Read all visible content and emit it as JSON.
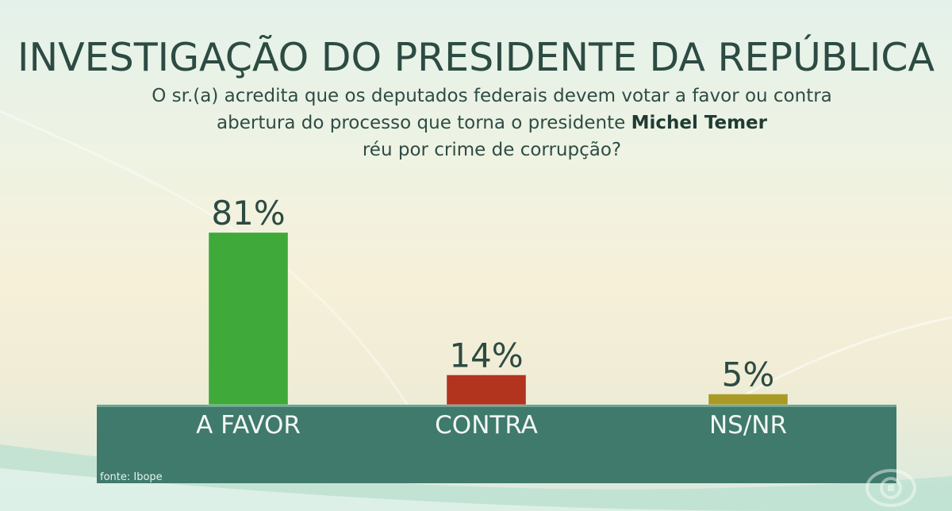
{
  "chart_data": {
    "type": "bar",
    "title": "INVESTIGAÇÃO DO PRESIDENTE DA REPÚBLICA",
    "subtitle_lines": [
      "O sr.(a) acredita que os deputados federais devem votar a favor ou contra",
      "abertura do processo que torna o presidente",
      "réu por crime de corrupção?"
    ],
    "subtitle_highlight": "Michel Temer",
    "categories": [
      "A FAVOR",
      "CONTRA",
      "NS/NR"
    ],
    "values": [
      81,
      14,
      5
    ],
    "value_labels": [
      "81%",
      "14%",
      "5%"
    ],
    "colors": [
      "#3faa39",
      "#b2341f",
      "#a89a25"
    ],
    "ylim": [
      0,
      100
    ],
    "source": "fonte: Ibope"
  },
  "theme": {
    "band_color": "#3f7a6c",
    "text_color": "#2c4b43"
  },
  "logo_icon": "globo-logo-icon"
}
